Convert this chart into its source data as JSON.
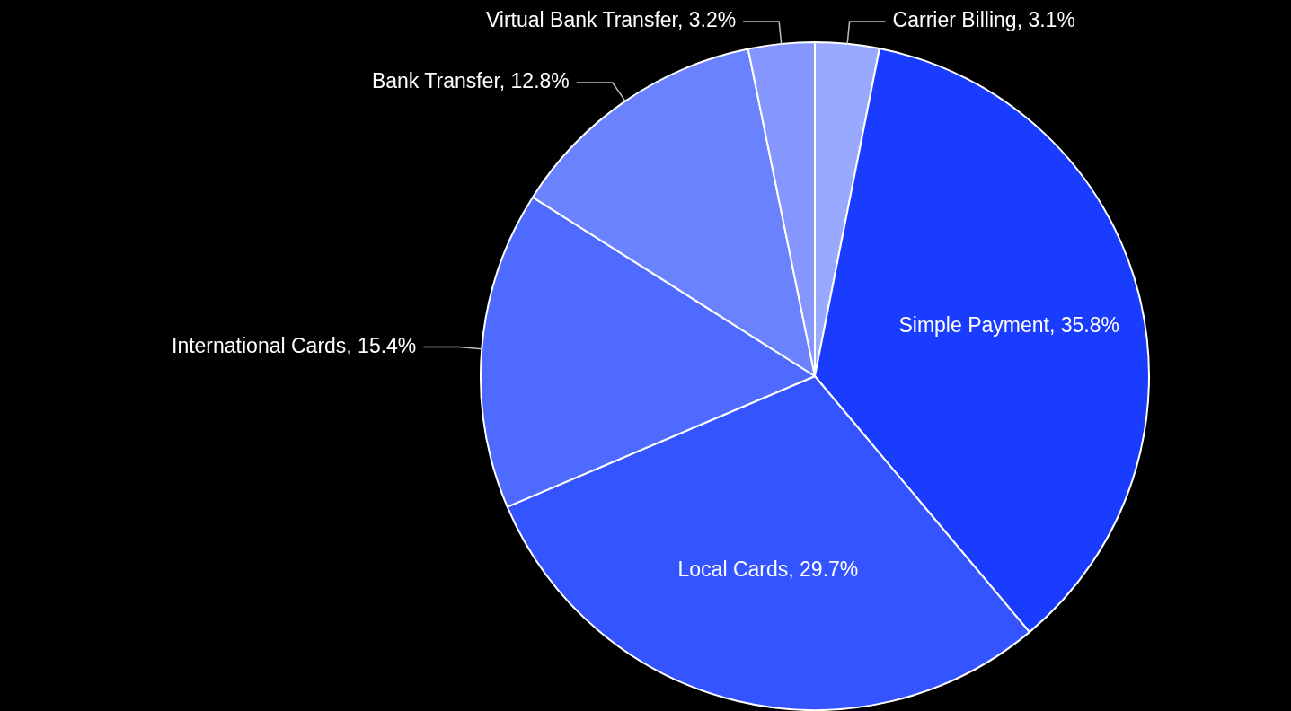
{
  "chart_data": {
    "type": "pie",
    "categories": [
      "Carrier Billing",
      "Simple Payment",
      "Local Cards",
      "International Cards",
      "Bank Transfer",
      "Virtual Bank Transfer"
    ],
    "values": [
      3.1,
      35.8,
      29.7,
      15.4,
      12.8,
      3.2
    ],
    "value_labels": [
      "3.1%",
      "35.8%",
      "29.7%",
      "15.4%",
      "12.8%",
      "3.2%"
    ],
    "colors": [
      "#99a9ff",
      "#1a3cff",
      "#3354ff",
      "#4f6bff",
      "#6b82ff",
      "#8597ff"
    ],
    "legend": false
  }
}
